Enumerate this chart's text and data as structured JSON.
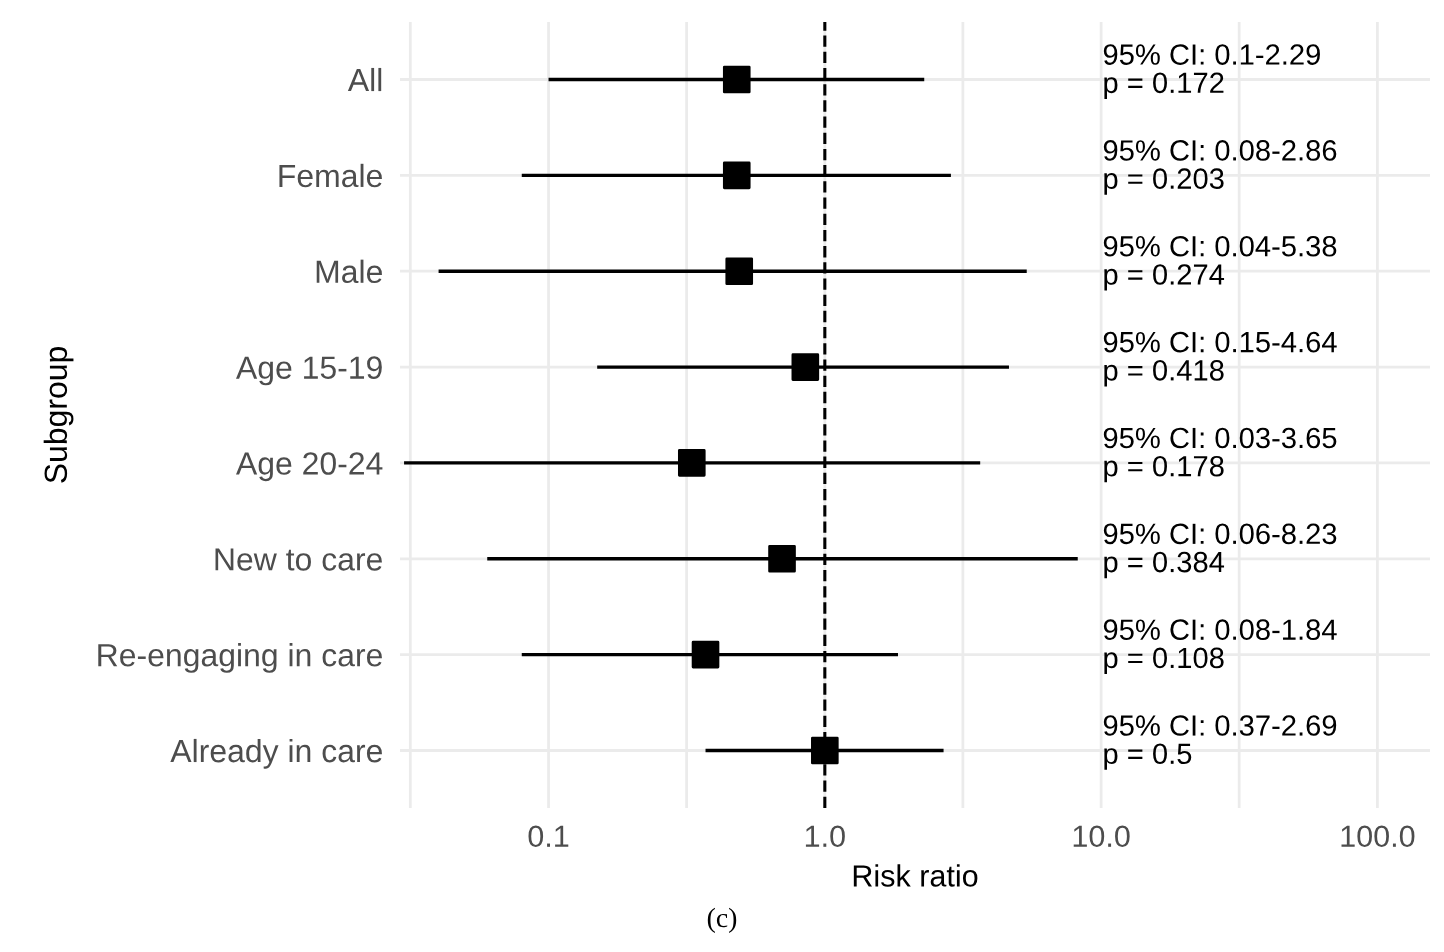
{
  "chart_data": {
    "type": "scatter",
    "orientation": "horizontal",
    "xlabel": "Risk ratio",
    "ylabel": "Subgroup",
    "categories": [
      "All",
      "Female",
      "Male",
      "Age 15-19",
      "Age 20-24",
      "New to care",
      "Re-engaging in care",
      "Already in care"
    ],
    "series": [
      {
        "color": "#000000",
        "values": [
          0.48,
          0.48,
          0.49,
          0.85,
          0.33,
          0.7,
          0.37,
          1.0
        ],
        "errors": [
          [
            0.1,
            2.29
          ],
          [
            0.08,
            2.86
          ],
          [
            0.04,
            5.38
          ],
          [
            0.15,
            4.64
          ],
          [
            0.03,
            3.65
          ],
          [
            0.06,
            8.23
          ],
          [
            0.08,
            1.84
          ],
          [
            0.37,
            2.69
          ]
        ]
      }
    ],
    "log": "x",
    "xlim": [
      0.029,
      155
    ],
    "xticks": [
      {
        "value": 0.0316,
        "label": null
      },
      {
        "value": 0.1,
        "label": "0.1"
      },
      {
        "value": 0.316,
        "label": null
      },
      {
        "value": 1,
        "label": "1.0"
      },
      {
        "value": 3.16,
        "label": null
      },
      {
        "value": 10,
        "label": "10.0"
      },
      {
        "value": 31.6,
        "label": null
      },
      {
        "value": 100,
        "label": "100.0"
      }
    ],
    "ref_lines": [
      {
        "axis": "x",
        "value": 1,
        "line_style": "dashed",
        "color": "#000000"
      }
    ],
    "grid": true,
    "marker": "square",
    "legend": false,
    "annotations": [
      "95% CI: 0.1-2.29\np = 0.172",
      "95% CI: 0.08-2.86\np = 0.203",
      "95% CI: 0.04-5.38\np = 0.274",
      "95% CI: 0.15-4.64\np = 0.418",
      "95% CI: 0.03-3.65\np = 0.178",
      "95% CI: 0.06-8.23\np = 0.384",
      "95% CI: 0.08-1.84\np = 0.108",
      "95% CI: 0.37-2.69\np = 0.5",
      "(c)"
    ]
  }
}
